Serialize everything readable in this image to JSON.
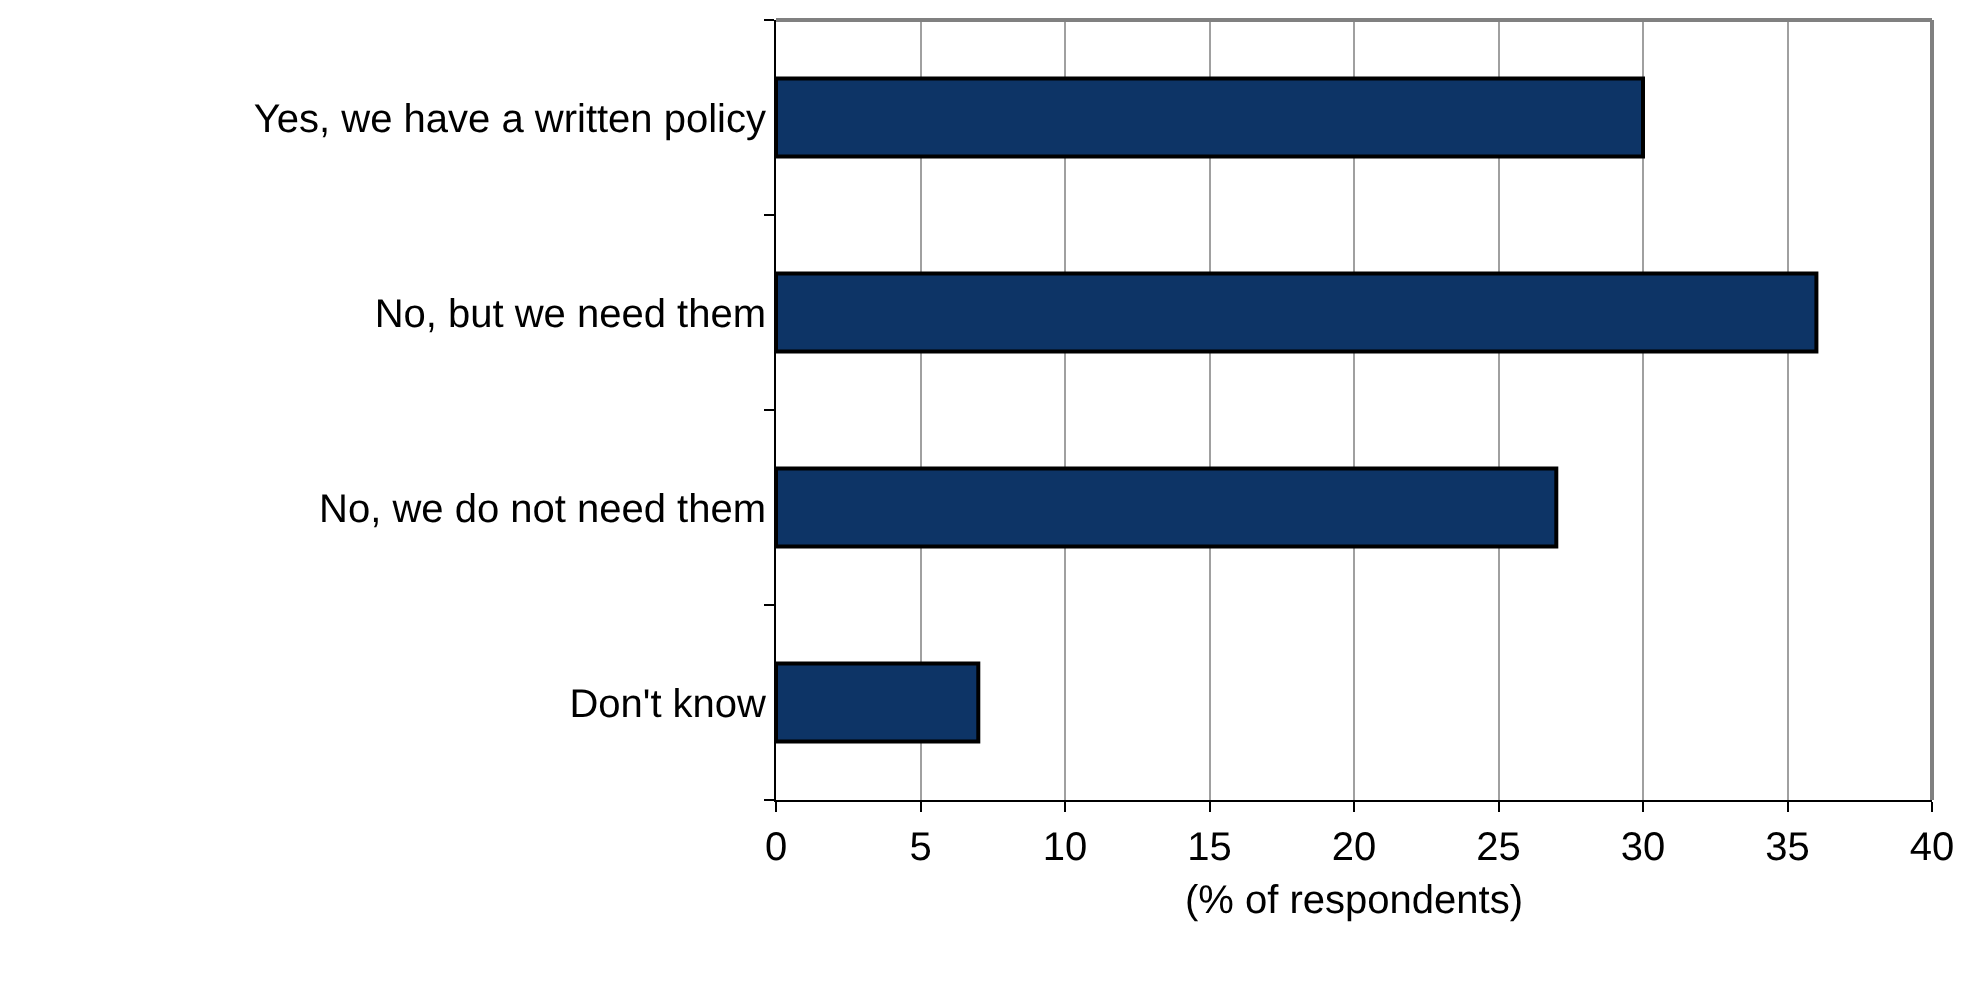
{
  "chart_data": {
    "type": "bar",
    "orientation": "horizontal",
    "categories": [
      "Yes, we have a written policy",
      "No, but we need them",
      "No, we do not need them",
      "Don't know"
    ],
    "values": [
      30,
      36,
      27,
      7
    ],
    "color": "#0d3466",
    "xlabel": "(% of respondents)",
    "xlim": [
      0,
      40
    ],
    "xticks": [
      0,
      5,
      10,
      15,
      20,
      25,
      30,
      35,
      40
    ],
    "grid": "x"
  }
}
